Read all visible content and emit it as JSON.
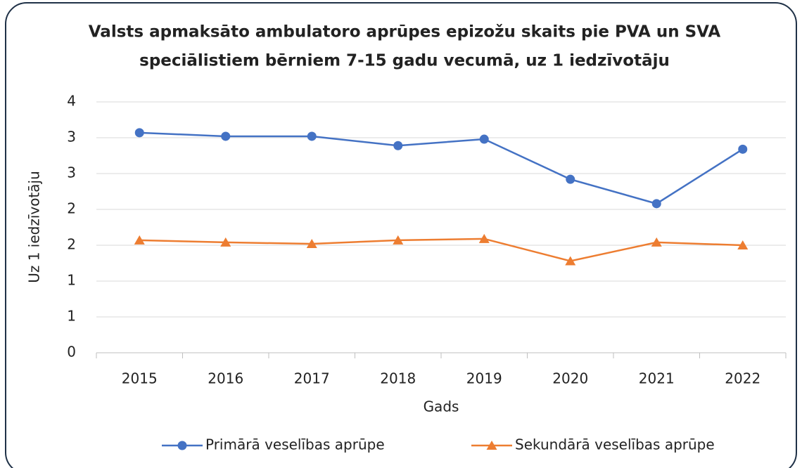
{
  "chart_data": {
    "type": "line",
    "title": [
      "Valsts apmaksāto ambulatoro aprūpes epizožu skaits pie PVA un SVA",
      "speciālistiem bērniem 7-15 gadu vecumā, uz 1 iedzīvotāju"
    ],
    "x_label": "Gads",
    "y_label": "Uz 1 iedzīvotāju",
    "categories": [
      "2015",
      "2016",
      "2017",
      "2018",
      "2019",
      "2020",
      "2021",
      "2022"
    ],
    "series": [
      {
        "name": "Primārā veselības aprūpe",
        "color": "#4472c4",
        "marker": "circle",
        "values": [
          3.07,
          3.02,
          3.02,
          2.89,
          2.98,
          2.42,
          2.08,
          2.84
        ]
      },
      {
        "name": "Sekundārā veselības aprūpe",
        "color": "#ed7d31",
        "marker": "triangle",
        "values": [
          1.57,
          1.54,
          1.52,
          1.57,
          1.59,
          1.28,
          1.54,
          1.5
        ]
      }
    ],
    "ylim": [
      0,
      3.5
    ],
    "yticks": [
      0,
      {
        "value": 0.5,
        "label": "1"
      },
      1,
      {
        "value": 1.5,
        "label": "2"
      },
      2,
      {
        "value": 2.5,
        "label": "3"
      },
      3,
      {
        "value": 3.5,
        "label": "4"
      }
    ],
    "grid": true,
    "legend": "bottom"
  }
}
